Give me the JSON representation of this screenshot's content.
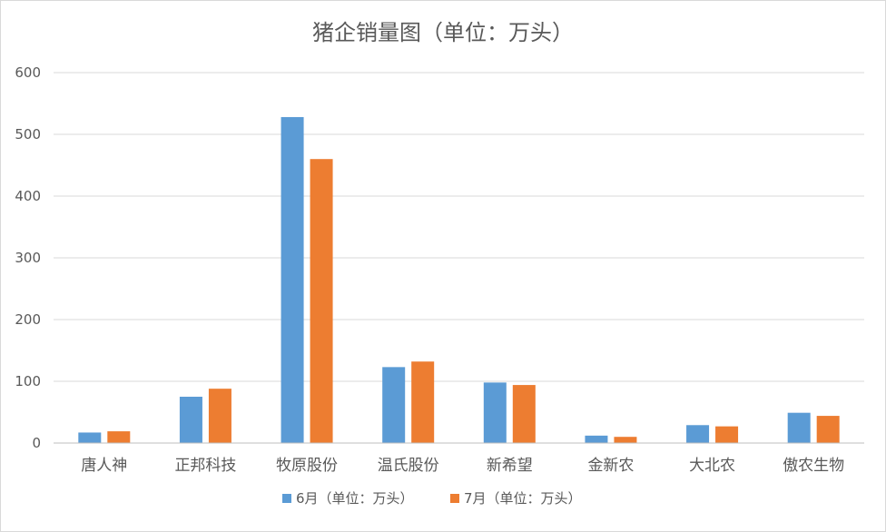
{
  "chart_data": {
    "type": "bar",
    "title": "猪企销量图（单位：万头）",
    "categories": [
      "唐人神",
      "正邦科技",
      "牧原股份",
      "温氏股份",
      "新希望",
      "金新农",
      "大北农",
      "傲农生物"
    ],
    "series": [
      {
        "name": "6月（单位：万头）",
        "color": "#5b9bd5",
        "values": [
          17,
          75,
          528,
          123,
          98,
          12,
          29,
          49
        ]
      },
      {
        "name": "7月（单位：万头）",
        "color": "#ed7d31",
        "values": [
          19,
          88,
          460,
          132,
          94,
          10,
          27,
          44
        ]
      }
    ],
    "ylim": [
      0,
      600
    ],
    "yticks": [
      0,
      100,
      200,
      300,
      400,
      500,
      600
    ],
    "grid": true,
    "legend_position": "bottom"
  }
}
